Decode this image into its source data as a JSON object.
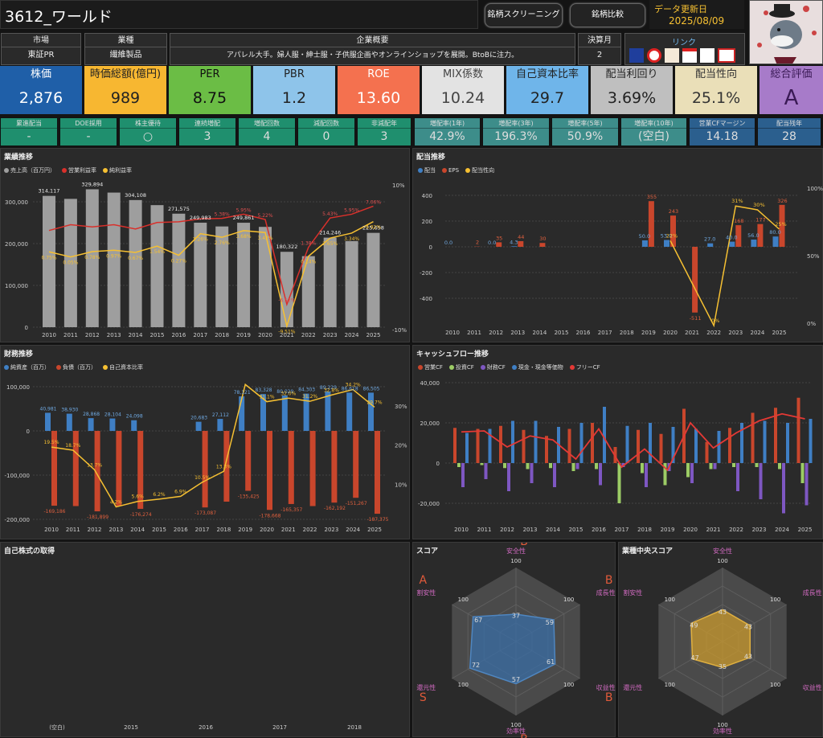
{
  "header": {
    "title": "3612_ワールド",
    "screening_button": "銘柄スクリーニング",
    "compare_button": "銘柄比較",
    "updated_label": "データ更新日",
    "updated_date": "2025/08/09"
  },
  "info": {
    "market_label": "市場",
    "market": "東証PR",
    "industry_label": "業種",
    "industry": "繊維製品",
    "overview_label": "企業概要",
    "overview": "アパレル大手。婦人服・紳士服・子供服企画やオンラインショップを展開。BtoBに注力。",
    "fiscal_label": "決算月",
    "fiscal": "2",
    "link_label": "リンク"
  },
  "kpis": [
    {
      "label": "株価",
      "value": "2,876",
      "bg": "#1f5fa8",
      "fg": "#fff"
    },
    {
      "label": "時価総額(億円)",
      "value": "989",
      "bg": "#f7b731",
      "fg": "#222"
    },
    {
      "label": "PER",
      "value": "8.75",
      "bg": "#6bbd45",
      "fg": "#111"
    },
    {
      "label": "PBR",
      "value": "1.2",
      "bg": "#8ec4ea",
      "fg": "#222"
    },
    {
      "label": "ROE",
      "value": "13.60",
      "bg": "#f4714f",
      "fg": "#fff"
    },
    {
      "label": "MIX係数",
      "value": "10.24",
      "bg": "#e3e3e3",
      "fg": "#444"
    },
    {
      "label": "自己資本比率",
      "value": "29.7",
      "bg": "#6fb5ea",
      "fg": "#222"
    },
    {
      "label": "配当利回り",
      "value": "3.69%",
      "bg": "#bfbfbf",
      "fg": "#222"
    },
    {
      "label": "配当性向",
      "value": "25.1%",
      "bg": "#eadfb8",
      "fg": "#333"
    },
    {
      "label": "総合評価",
      "value": "A",
      "bg": "#a77bc9",
      "fg": "#3a1a55"
    }
  ],
  "small": [
    {
      "label": "累進配当",
      "value": "-",
      "bg": "#1f8f6e"
    },
    {
      "label": "DOE採用",
      "value": "-",
      "bg": "#1f8f6e"
    },
    {
      "label": "株主優待",
      "value": "○",
      "bg": "#1f8f6e"
    },
    {
      "label": "連続増配",
      "value": "3",
      "bg": "#1f8f6e"
    },
    {
      "label": "増配回数",
      "value": "4",
      "bg": "#1f8f6e"
    },
    {
      "label": "減配回数",
      "value": "0",
      "bg": "#1f8f6e"
    },
    {
      "label": "非減配年",
      "value": "3",
      "bg": "#1f8f6e"
    },
    {
      "label": "増配率(1年)",
      "value": "42.9%",
      "bg": "#3d8d8a"
    },
    {
      "label": "増配率(3年)",
      "value": "196.3%",
      "bg": "#3d8d8a"
    },
    {
      "label": "増配率(5年)",
      "value": "50.9%",
      "bg": "#3d8d8a"
    },
    {
      "label": "増配率(10年)",
      "value": "(空白)",
      "bg": "#3d8d8a"
    },
    {
      "label": "営業CFマージン",
      "value": "14.18",
      "bg": "#2b5f8e"
    },
    {
      "label": "配当残年",
      "value": "28",
      "bg": "#2b5f8e"
    }
  ],
  "panels": {
    "gyoseki": "業績推移",
    "haito": "配当推移",
    "zaimu": "財務推移",
    "cf": "キャッシュフロー推移",
    "jisha": "自己株式の取得",
    "score": "スコア",
    "median": "業種中央スコア"
  },
  "legends": {
    "gyoseki": [
      {
        "name": "売上高（百万円）",
        "color": "#9e9e9e"
      },
      {
        "name": "営業利益率",
        "color": "#d9302b"
      },
      {
        "name": "純利益率",
        "color": "#f6c032"
      }
    ],
    "haito": [
      {
        "name": "配当",
        "color": "#3f7fc4"
      },
      {
        "name": "EPS",
        "color": "#c9462c"
      },
      {
        "name": "配当性向",
        "color": "#f6c032"
      }
    ],
    "zaimu": [
      {
        "name": "純資産（百万）",
        "color": "#3f7fc4"
      },
      {
        "name": "負債（百万）",
        "color": "#c9462c"
      },
      {
        "name": "自己資本比率",
        "color": "#f6c032"
      }
    ],
    "cf": [
      {
        "name": "営業CF",
        "color": "#c9462c"
      },
      {
        "name": "投資CF",
        "color": "#9ccc65"
      },
      {
        "name": "財務CF",
        "color": "#7e57c2"
      },
      {
        "name": "現金・現金等価物",
        "color": "#3f7fc4"
      },
      {
        "name": "フリーCF",
        "color": "#e53935"
      }
    ]
  },
  "chart_data": [
    {
      "type": "bar",
      "id": "gyoseki",
      "title": "業績推移",
      "categories": [
        "2010",
        "2011",
        "2012",
        "2013",
        "2014",
        "2015",
        "2016",
        "2017",
        "2018",
        "2019",
        "2020",
        "2021",
        "2022",
        "2023",
        "2024",
        "2025"
      ],
      "yticks": [
        "300,000",
        "200,000",
        "100,000",
        "0"
      ],
      "y2ticks": [
        "10%",
        "0%",
        "-10%"
      ],
      "ylim": [
        0,
        350000
      ],
      "y2lim": [
        -15,
        15
      ],
      "series": [
        {
          "name": "売上高（百万円）",
          "values": [
            314117,
            307000,
            329894,
            322000,
            304108,
            292000,
            271575,
            249983,
            241000,
            249861,
            240000,
            180322,
            170000,
            214246,
            206000,
            225658
          ]
        },
        {
          "name": "営業利益率",
          "values": [
            3.7,
            4.5,
            4.2,
            4.5,
            3.9,
            4.8,
            4.9,
            5.3,
            5.38,
            5.95,
            5.22,
            -6.52,
            1.38,
            5.43,
            5.95,
            7.06
          ]
        },
        {
          "name": "純利益率",
          "values": [
            0.75,
            0.05,
            0.78,
            0.97,
            0.67,
            1.54,
            0.27,
            3.26,
            2.76,
            3.68,
            3.42,
            -9.51,
            0.14,
            2.65,
            3.34,
            4.92
          ]
        }
      ],
      "labels_sales": [
        "314,117",
        "",
        "329,894",
        "",
        "304,108",
        "",
        "271,575",
        "249,983",
        "",
        "249,861",
        "",
        "180,322",
        "",
        "214,246",
        "",
        "225,658"
      ],
      "labels_op": [
        "",
        "",
        "",
        "",
        "",
        "",
        "",
        "",
        "5.38%",
        "5.95%",
        "5.22%",
        "-6.52%",
        "1.38%",
        "5.43%",
        "5.95%",
        "7.06%"
      ],
      "labels_net": [
        "0.75%",
        "0.05%",
        "0.78%",
        "0.97%",
        "0.67%",
        "1.54%",
        "0.27%",
        "3.26%",
        "2.76%",
        "3.68%",
        "3.42%",
        "-9.51%",
        "0.14%",
        "2.65%",
        "3.34%",
        "4.92%"
      ]
    },
    {
      "type": "bar",
      "id": "haito",
      "title": "配当推移",
      "categories": [
        "2010",
        "2011",
        "2012",
        "2013",
        "2014",
        "2015",
        "2016",
        "2017",
        "2018",
        "2019",
        "2020",
        "2021",
        "2022",
        "2023",
        "2024",
        "2025"
      ],
      "yticks": [
        "400",
        "200",
        "0",
        "-200",
        "-400"
      ],
      "y2ticks": [
        "100%",
        "50%",
        "0%"
      ],
      "ylim": [
        -550,
        450
      ],
      "series": [
        {
          "name": "配当",
          "values": [
            0,
            0,
            0,
            4.3,
            0,
            null,
            null,
            null,
            null,
            50,
            53,
            0,
            27,
            40,
            56,
            80
          ]
        },
        {
          "name": "EPS",
          "values": [
            null,
            2,
            35,
            44,
            30,
            null,
            null,
            null,
            null,
            355,
            243,
            -511,
            0,
            168,
            177,
            326
          ]
        },
        {
          "name": "配当性向",
          "values": [
            null,
            null,
            null,
            null,
            null,
            null,
            null,
            null,
            null,
            null,
            22,
            null,
            0,
            31,
            30,
            25
          ]
        }
      ],
      "labels_div": [
        "0.0",
        "",
        "0.0",
        "4.3",
        "",
        "",
        "",
        "",
        "",
        "50.0",
        "53.0",
        "",
        "27.0",
        "40.0",
        "56.0",
        "80.0"
      ],
      "labels_eps": [
        "",
        "2",
        "35",
        "44",
        "30",
        "",
        "",
        "",
        "",
        "355",
        "243",
        "-511",
        "",
        "168",
        "177",
        "326"
      ],
      "labels_payout": [
        "",
        "",
        "",
        "",
        "",
        "",
        "",
        "",
        "",
        "",
        "22%",
        "",
        "0%",
        "31%",
        "30%",
        "25%"
      ]
    },
    {
      "type": "bar",
      "id": "zaimu",
      "title": "財務推移",
      "categories": [
        "2010",
        "2011",
        "2012",
        "2013",
        "2014",
        "2015",
        "2016",
        "2017",
        "2018",
        "2019",
        "2020",
        "2021",
        "2022",
        "2023",
        "2024",
        "2025"
      ],
      "yticks": [
        "100,000",
        "0",
        "-100,000",
        "-200,000"
      ],
      "y2ticks": [
        "30%",
        "20%",
        "10%"
      ],
      "series": [
        {
          "name": "純資産（百万）",
          "values": [
            40981,
            38930,
            28868,
            28104,
            24098,
            null,
            null,
            20683,
            27112,
            78121,
            83328,
            80029,
            84303,
            89229,
            86618,
            86505
          ]
        },
        {
          "name": "負債（百万）",
          "values": [
            -169186,
            -170000,
            -181899,
            -170000,
            -176274,
            null,
            null,
            -173087,
            -160000,
            -135425,
            -178668,
            -165357,
            -170000,
            -162192,
            -151267,
            -187375
          ]
        },
        {
          "name": "自己資本比率",
          "values": [
            19.5,
            18.7,
            13.7,
            4.2,
            5.6,
            6.2,
            6.9,
            10.5,
            13.3,
            35.5,
            31.1,
            32.0,
            31.2,
            32.8,
            34.2,
            29.7
          ]
        }
      ],
      "labels_na": [
        "40,981",
        "38,930",
        "28,868",
        "28,104",
        "24,098",
        "",
        "",
        "20,683",
        "27,112",
        "78,121",
        "83,328",
        "80,029",
        "84,303",
        "89,229",
        "86,618",
        "86,505"
      ],
      "labels_debt": [
        "-169,186",
        "",
        "-181,899",
        "",
        "-176,274",
        "",
        "",
        "-173,087",
        "",
        "-135,425",
        "-178,668",
        "-165,357",
        "",
        "-162,192",
        "-151,267",
        "-187,375"
      ],
      "labels_ratio": [
        "19.5%",
        "18.7%",
        "13.7%",
        "4.2%",
        "5.6%",
        "6.2%",
        "6.9%",
        "10.5%",
        "13.3%",
        "",
        "31.1%",
        "32.0%",
        "31.2%",
        "32.8%",
        "34.2%",
        "29.7%"
      ]
    },
    {
      "type": "bar",
      "id": "cf",
      "title": "キャッシュフロー推移",
      "categories": [
        "2010",
        "2011",
        "2012",
        "2013",
        "2014",
        "2015",
        "2016",
        "2017",
        "2018",
        "2019",
        "2020",
        "2021",
        "2022",
        "2023",
        "2024",
        "2025"
      ],
      "yticks": [
        "40,000",
        "20,000",
        "0",
        "-20,000"
      ],
      "ylim": [
        -28000,
        42000
      ],
      "series": [
        {
          "name": "営業CF",
          "values": [
            17500,
            17000,
            18500,
            16500,
            13500,
            17000,
            20000,
            8000,
            16500,
            14500,
            27000,
            10500,
            17500,
            25000,
            27500,
            32500
          ]
        },
        {
          "name": "投資CF",
          "values": [
            -2000,
            -1000,
            -2500,
            -3000,
            -2500,
            -4000,
            -3000,
            -20000,
            -5000,
            -11000,
            -7000,
            -3000,
            -2000,
            -2000,
            -3000,
            -10000
          ]
        },
        {
          "name": "財務CF",
          "values": [
            -12000,
            -8000,
            -14000,
            -10000,
            -12000,
            -3000,
            -11000,
            -2000,
            -12000,
            -4000,
            -10000,
            -3000,
            -14000,
            -18000,
            -25000,
            -21000
          ]
        },
        {
          "name": "現金・現金等価物",
          "values": [
            15000,
            17000,
            21000,
            21000,
            18000,
            20000,
            28000,
            18500,
            20000,
            18000,
            17000,
            16000,
            20000,
            21000,
            20000,
            22000
          ]
        },
        {
          "name": "フリーCF",
          "values": [
            15500,
            16000,
            8000,
            13500,
            11500,
            2000,
            17000,
            -2000,
            7000,
            -3500,
            20000,
            7500,
            15000,
            21000,
            24500,
            22000
          ]
        }
      ]
    },
    {
      "type": "radar",
      "id": "score",
      "title": "スコア",
      "axes": [
        "安全性",
        "成長性",
        "収益性",
        "効率性",
        "還元性",
        "割安性"
      ],
      "max": 100,
      "values": [
        37,
        59,
        61,
        57,
        72,
        67
      ],
      "grades": [
        "B",
        "B",
        "B",
        "B",
        "S",
        "A"
      ]
    },
    {
      "type": "radar",
      "id": "median",
      "title": "業種中央スコア",
      "axes": [
        "安全性",
        "成長性",
        "収益性",
        "効率性",
        "還元性",
        "割安性"
      ],
      "max": 100,
      "values": [
        43,
        43,
        43,
        35,
        47,
        49
      ]
    }
  ],
  "jisha_axis": [
    "(空白)",
    "2015",
    "2016",
    "2017",
    "2018"
  ],
  "radar_max_label": "100"
}
